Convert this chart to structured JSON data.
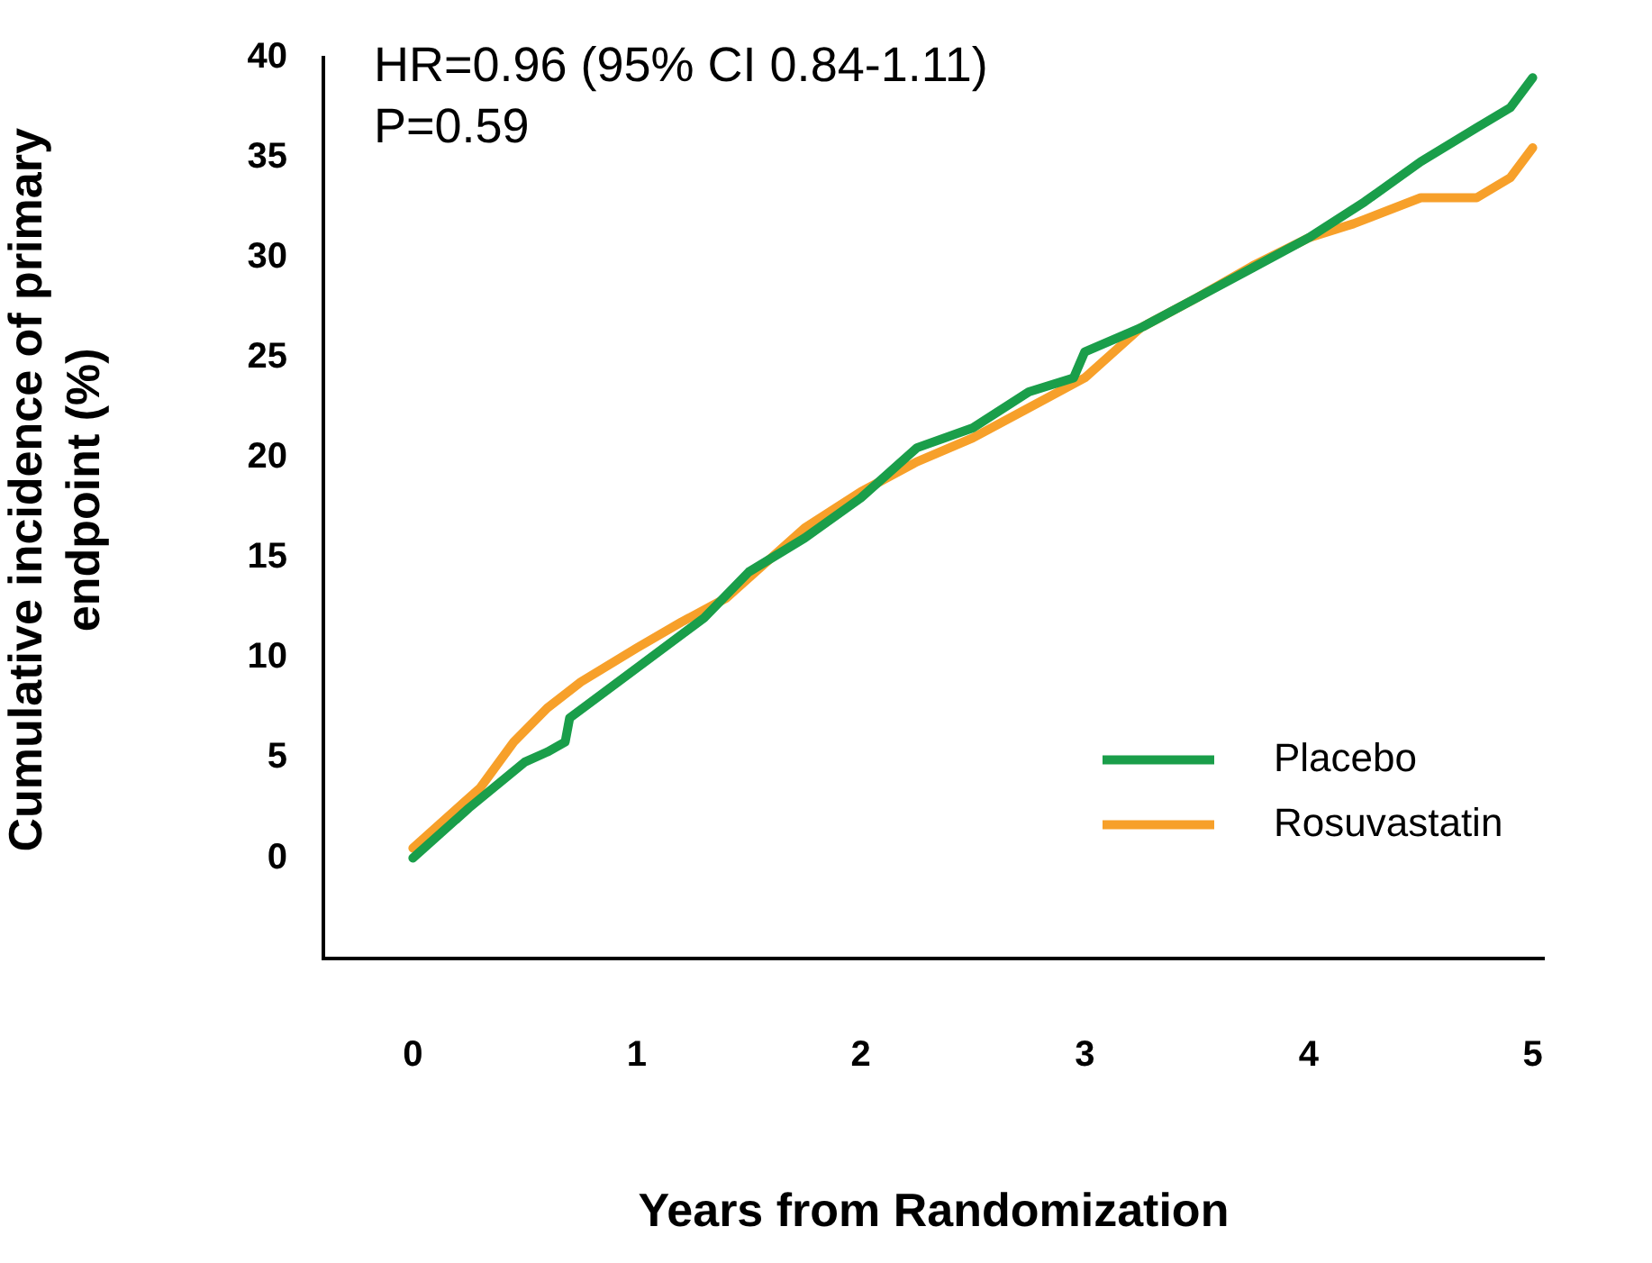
{
  "chart_data": {
    "type": "line",
    "xlabel": "Years from Randomization",
    "ylabel": "Cumulative incidence of primary endpoint (%)",
    "xlim": [
      -0.4,
      5.05
    ],
    "xticks": [
      0,
      1,
      2,
      3,
      4,
      5
    ],
    "ylim": [
      -5,
      40
    ],
    "yticks": [
      0,
      5,
      10,
      15,
      20,
      25,
      30,
      35,
      40
    ],
    "grid": false,
    "legend": "bottom right",
    "marker": "none",
    "line_style": "solid",
    "annotations": [
      "HR=0.96 (95% CI 0.84-1.11)",
      "P=0.59"
    ],
    "series": [
      {
        "name": "Placebo",
        "color": "#1a9e4a",
        "x": [
          0,
          0.25,
          0.5,
          0.6,
          0.68,
          0.7,
          1,
          1.3,
          1.5,
          1.75,
          2,
          2.25,
          2.5,
          2.75,
          2.95,
          3,
          3.25,
          3.5,
          3.75,
          4,
          4.25,
          4.5,
          4.75,
          4.9,
          5
        ],
        "values": [
          0,
          2.5,
          4.8,
          5.3,
          5.8,
          7,
          9.5,
          12,
          14.3,
          16,
          18,
          20.5,
          21.5,
          23.3,
          24,
          25.3,
          26.5,
          28,
          29.5,
          31,
          32.8,
          34.8,
          36.5,
          37.5,
          39
        ]
      },
      {
        "name": "Rosuvastatin",
        "color": "#f7a02a",
        "x": [
          0,
          0.3,
          0.45,
          0.6,
          0.75,
          1,
          1.2,
          1.4,
          1.6,
          1.75,
          2,
          2.25,
          2.5,
          2.75,
          3,
          3.25,
          3.5,
          3.75,
          4,
          4.2,
          4.5,
          4.75,
          4.9,
          5
        ],
        "values": [
          0.5,
          3.5,
          5.8,
          7.5,
          8.8,
          10.5,
          11.8,
          13,
          15,
          16.5,
          18.3,
          19.8,
          21,
          22.5,
          24,
          26.5,
          28,
          29.6,
          31,
          31.7,
          33,
          33,
          34,
          35.5
        ]
      }
    ]
  }
}
